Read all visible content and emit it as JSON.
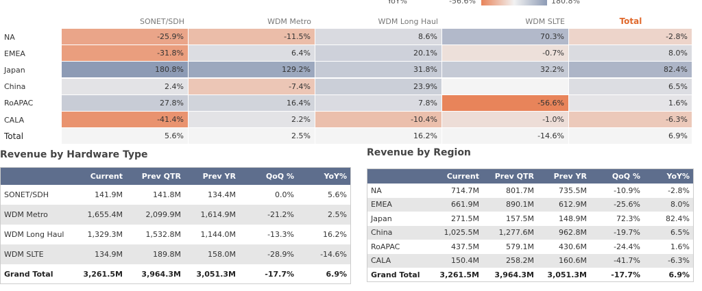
{
  "legend": {
    "title": "YoY%",
    "min": "-56.6%",
    "max": "180.8%"
  },
  "heatmap": {
    "columns": [
      "SONET/SDH",
      "WDM Metro",
      "WDM Long Haul",
      "WDM SLTE",
      "Total"
    ],
    "rows": [
      {
        "label": "NA",
        "cells": [
          "-25.9%",
          "-11.5%",
          "8.6%",
          "70.3%",
          "-2.8%"
        ]
      },
      {
        "label": "EMEA",
        "cells": [
          "-31.8%",
          "6.4%",
          "20.1%",
          "-0.7%",
          "8.0%"
        ]
      },
      {
        "label": "Japan",
        "cells": [
          "180.8%",
          "129.2%",
          "31.8%",
          "32.2%",
          "82.4%"
        ]
      },
      {
        "label": "China",
        "cells": [
          "2.4%",
          "-7.4%",
          "23.9%",
          null,
          "6.5%"
        ]
      },
      {
        "label": "RoAPAC",
        "cells": [
          "27.8%",
          "16.4%",
          "7.8%",
          "-56.6%",
          "1.6%"
        ]
      },
      {
        "label": "CALA",
        "cells": [
          "-41.4%",
          "2.2%",
          "-10.4%",
          "-1.0%",
          "-6.3%"
        ]
      },
      {
        "label": "Total",
        "cells": [
          "5.6%",
          "2.5%",
          "16.2%",
          "-14.6%",
          "6.9%"
        ]
      }
    ]
  },
  "hardware": {
    "title": "Revenue by Hardware Type",
    "columns": [
      "Current",
      "Prev QTR",
      "Prev YR",
      "QoQ %",
      "YoY%"
    ],
    "rows": [
      [
        "SONET/SDH",
        "141.9M",
        "141.8M",
        "134.4M",
        "0.0%",
        "5.6%"
      ],
      [
        "WDM Metro",
        "1,655.4M",
        "2,099.9M",
        "1,614.9M",
        "-21.2%",
        "2.5%"
      ],
      [
        "WDM Long Haul",
        "1,329.3M",
        "1,532.8M",
        "1,144.0M",
        "-13.3%",
        "16.2%"
      ],
      [
        "WDM SLTE",
        "134.9M",
        "189.8M",
        "158.0M",
        "-28.9%",
        "-14.6%"
      ],
      [
        "Grand Total",
        "3,261.5M",
        "3,964.3M",
        "3,051.3M",
        "-17.7%",
        "6.9%"
      ]
    ]
  },
  "region": {
    "title": "Revenue by Region",
    "columns": [
      "Current",
      "Prev QTR",
      "Prev YR",
      "QoQ %",
      "YoY%"
    ],
    "rows": [
      [
        "NA",
        "714.7M",
        "801.7M",
        "735.5M",
        "-10.9%",
        "-2.8%"
      ],
      [
        "EMEA",
        "661.9M",
        "890.1M",
        "612.9M",
        "-25.6%",
        "8.0%"
      ],
      [
        "Japan",
        "271.5M",
        "157.5M",
        "148.9M",
        "72.3%",
        "82.4%"
      ],
      [
        "China",
        "1,025.5M",
        "1,277.6M",
        "962.8M",
        "-19.7%",
        "6.5%"
      ],
      [
        "RoAPAC",
        "437.5M",
        "579.1M",
        "430.6M",
        "-24.4%",
        "1.6%"
      ],
      [
        "CALA",
        "150.4M",
        "258.2M",
        "160.6M",
        "-41.7%",
        "-6.3%"
      ],
      [
        "Grand Total",
        "3,261.5M",
        "3,964.3M",
        "3,051.3M",
        "-17.7%",
        "6.9%"
      ]
    ]
  }
}
